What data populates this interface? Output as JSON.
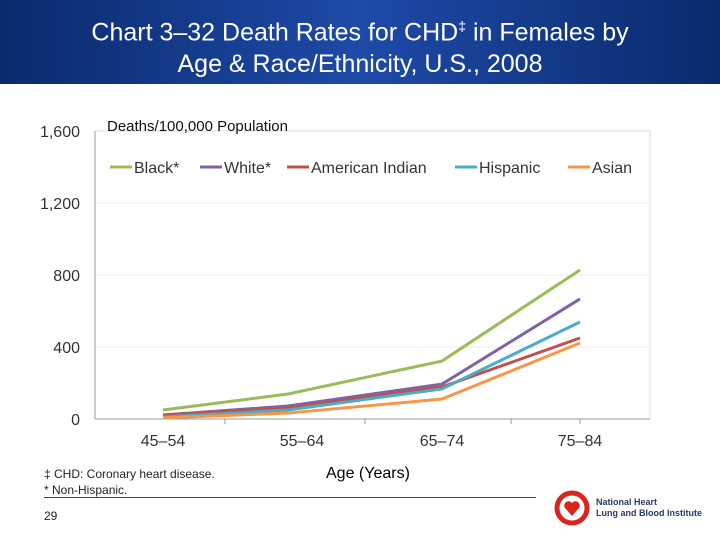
{
  "title_line1": "Chart 3–32  Death Rates for CHD",
  "title_mark": "‡",
  "title_line1_end": " in Females by",
  "title_line2": "Age & Race/Ethnicity, U.S., 2008",
  "footnotes": [
    "‡ CHD: Coronary heart disease.",
    "* Non-Hispanic."
  ],
  "page_number": "29",
  "logo_text": [
    "National Heart",
    "Lung and Blood Institute"
  ],
  "chart_data": {
    "type": "line",
    "ylabel": "Deaths/100,000 Population",
    "xlabel": "Age (Years)",
    "categories": [
      "45–54",
      "55–64",
      "65–74",
      "75–84"
    ],
    "ylim": [
      0,
      1600
    ],
    "yticks": [
      0,
      400,
      800,
      1200,
      1600
    ],
    "ytick_labels": [
      "0",
      "400",
      "800",
      "1,200",
      "1,600"
    ],
    "grid": true,
    "legend": "top",
    "series": [
      {
        "name": "Black*",
        "color": "#9bbb59",
        "values": [
          50,
          139,
          322,
          828
        ]
      },
      {
        "name": "White*",
        "color": "#8064a2",
        "values": [
          22,
          72,
          194,
          667
        ]
      },
      {
        "name": "American Indian",
        "color": "#c0504d",
        "values": [
          22,
          61,
          178,
          450
        ]
      },
      {
        "name": "Hispanic",
        "color": "#4bacc6",
        "values": [
          11,
          50,
          167,
          539
        ]
      },
      {
        "name": "Asian",
        "color": "#f79646",
        "values": [
          6,
          33,
          111,
          422
        ]
      }
    ]
  }
}
